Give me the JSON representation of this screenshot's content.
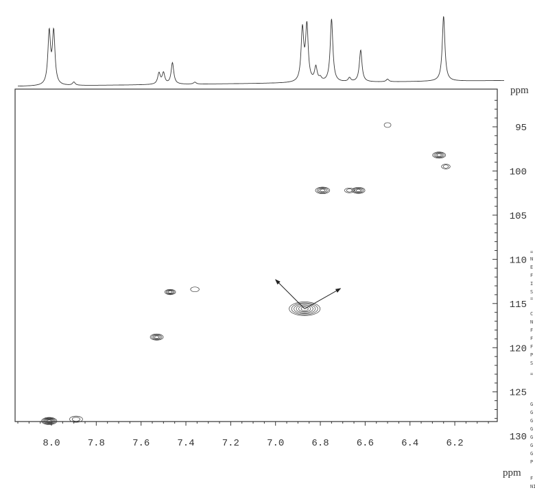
{
  "chart_data": {
    "type": "heatmap",
    "subtype": "2D NMR contour plot with 1D projection on top",
    "x_axis": {
      "label": "ppm",
      "range": [
        8.16,
        6.01
      ],
      "reversed": true,
      "ticks": [
        8.0,
        7.8,
        7.6,
        7.4,
        7.2,
        7.0,
        6.8,
        6.6,
        6.4,
        6.2
      ]
    },
    "y_axis": {
      "label": "ppm",
      "range": [
        91.0,
        131.5
      ],
      "position": "right",
      "ticks": [
        95,
        100,
        105,
        110,
        115,
        120,
        125,
        130
      ]
    },
    "grid": false,
    "line_color": "#333333",
    "projection_peaks": [
      {
        "ppm": 8.01,
        "height": 0.8
      },
      {
        "ppm": 7.99,
        "height": 0.8
      },
      {
        "ppm": 7.9,
        "height": 0.05
      },
      {
        "ppm": 7.52,
        "height": 0.17
      },
      {
        "ppm": 7.5,
        "height": 0.17
      },
      {
        "ppm": 7.46,
        "height": 0.33
      },
      {
        "ppm": 7.36,
        "height": 0.03
      },
      {
        "ppm": 6.88,
        "height": 0.8
      },
      {
        "ppm": 6.86,
        "height": 0.85
      },
      {
        "ppm": 6.82,
        "height": 0.22
      },
      {
        "ppm": 6.8,
        "height": 0.05
      },
      {
        "ppm": 6.75,
        "height": 0.97
      },
      {
        "ppm": 6.67,
        "height": 0.06
      },
      {
        "ppm": 6.62,
        "height": 0.49
      },
      {
        "ppm": 6.5,
        "height": 0.04
      },
      {
        "ppm": 6.25,
        "height": 1.0
      }
    ],
    "cross_peaks": [
      {
        "f2": 8.01,
        "f1": 128.3,
        "levels": 6,
        "width": 0.05
      },
      {
        "f2": 7.89,
        "f1": 128.1,
        "levels": 2,
        "width": 0.04
      },
      {
        "f2": 7.47,
        "f1": 113.7,
        "levels": 4,
        "width": 0.03
      },
      {
        "f2": 7.36,
        "f1": 113.4,
        "levels": 1,
        "width": 0.02
      },
      {
        "f2": 7.53,
        "f1": 118.8,
        "levels": 4,
        "width": 0.04
      },
      {
        "f2": 6.87,
        "f1": 115.6,
        "levels": 6,
        "width": 0.12
      },
      {
        "f2": 6.79,
        "f1": 102.2,
        "levels": 4,
        "width": 0.045
      },
      {
        "f2": 6.63,
        "f1": 102.2,
        "levels": 4,
        "width": 0.04
      },
      {
        "f2": 6.67,
        "f1": 102.2,
        "levels": 2,
        "width": 0.025
      },
      {
        "f2": 6.27,
        "f1": 98.2,
        "levels": 4,
        "width": 0.04
      },
      {
        "f2": 6.24,
        "f1": 99.5,
        "levels": 2,
        "width": 0.02
      },
      {
        "f2": 6.5,
        "f1": 94.8,
        "levels": 1,
        "width": 0.012
      }
    ],
    "annotations": [
      {
        "type": "arrow",
        "from": [
          6.87,
          115.6
        ],
        "to": [
          7.0,
          112.3
        ]
      },
      {
        "type": "arrow",
        "from": [
          6.87,
          115.6
        ],
        "to": [
          6.71,
          113.3
        ]
      }
    ]
  },
  "parameter_fragments": [
    "=",
    "N",
    "E",
    "F",
    "I",
    "S",
    "=",
    "C",
    "N",
    "F",
    "F",
    "F",
    "P",
    "S",
    "=",
    "G",
    "G",
    "G",
    "G",
    "G",
    "G",
    "G",
    "P",
    "F",
    "NI"
  ]
}
